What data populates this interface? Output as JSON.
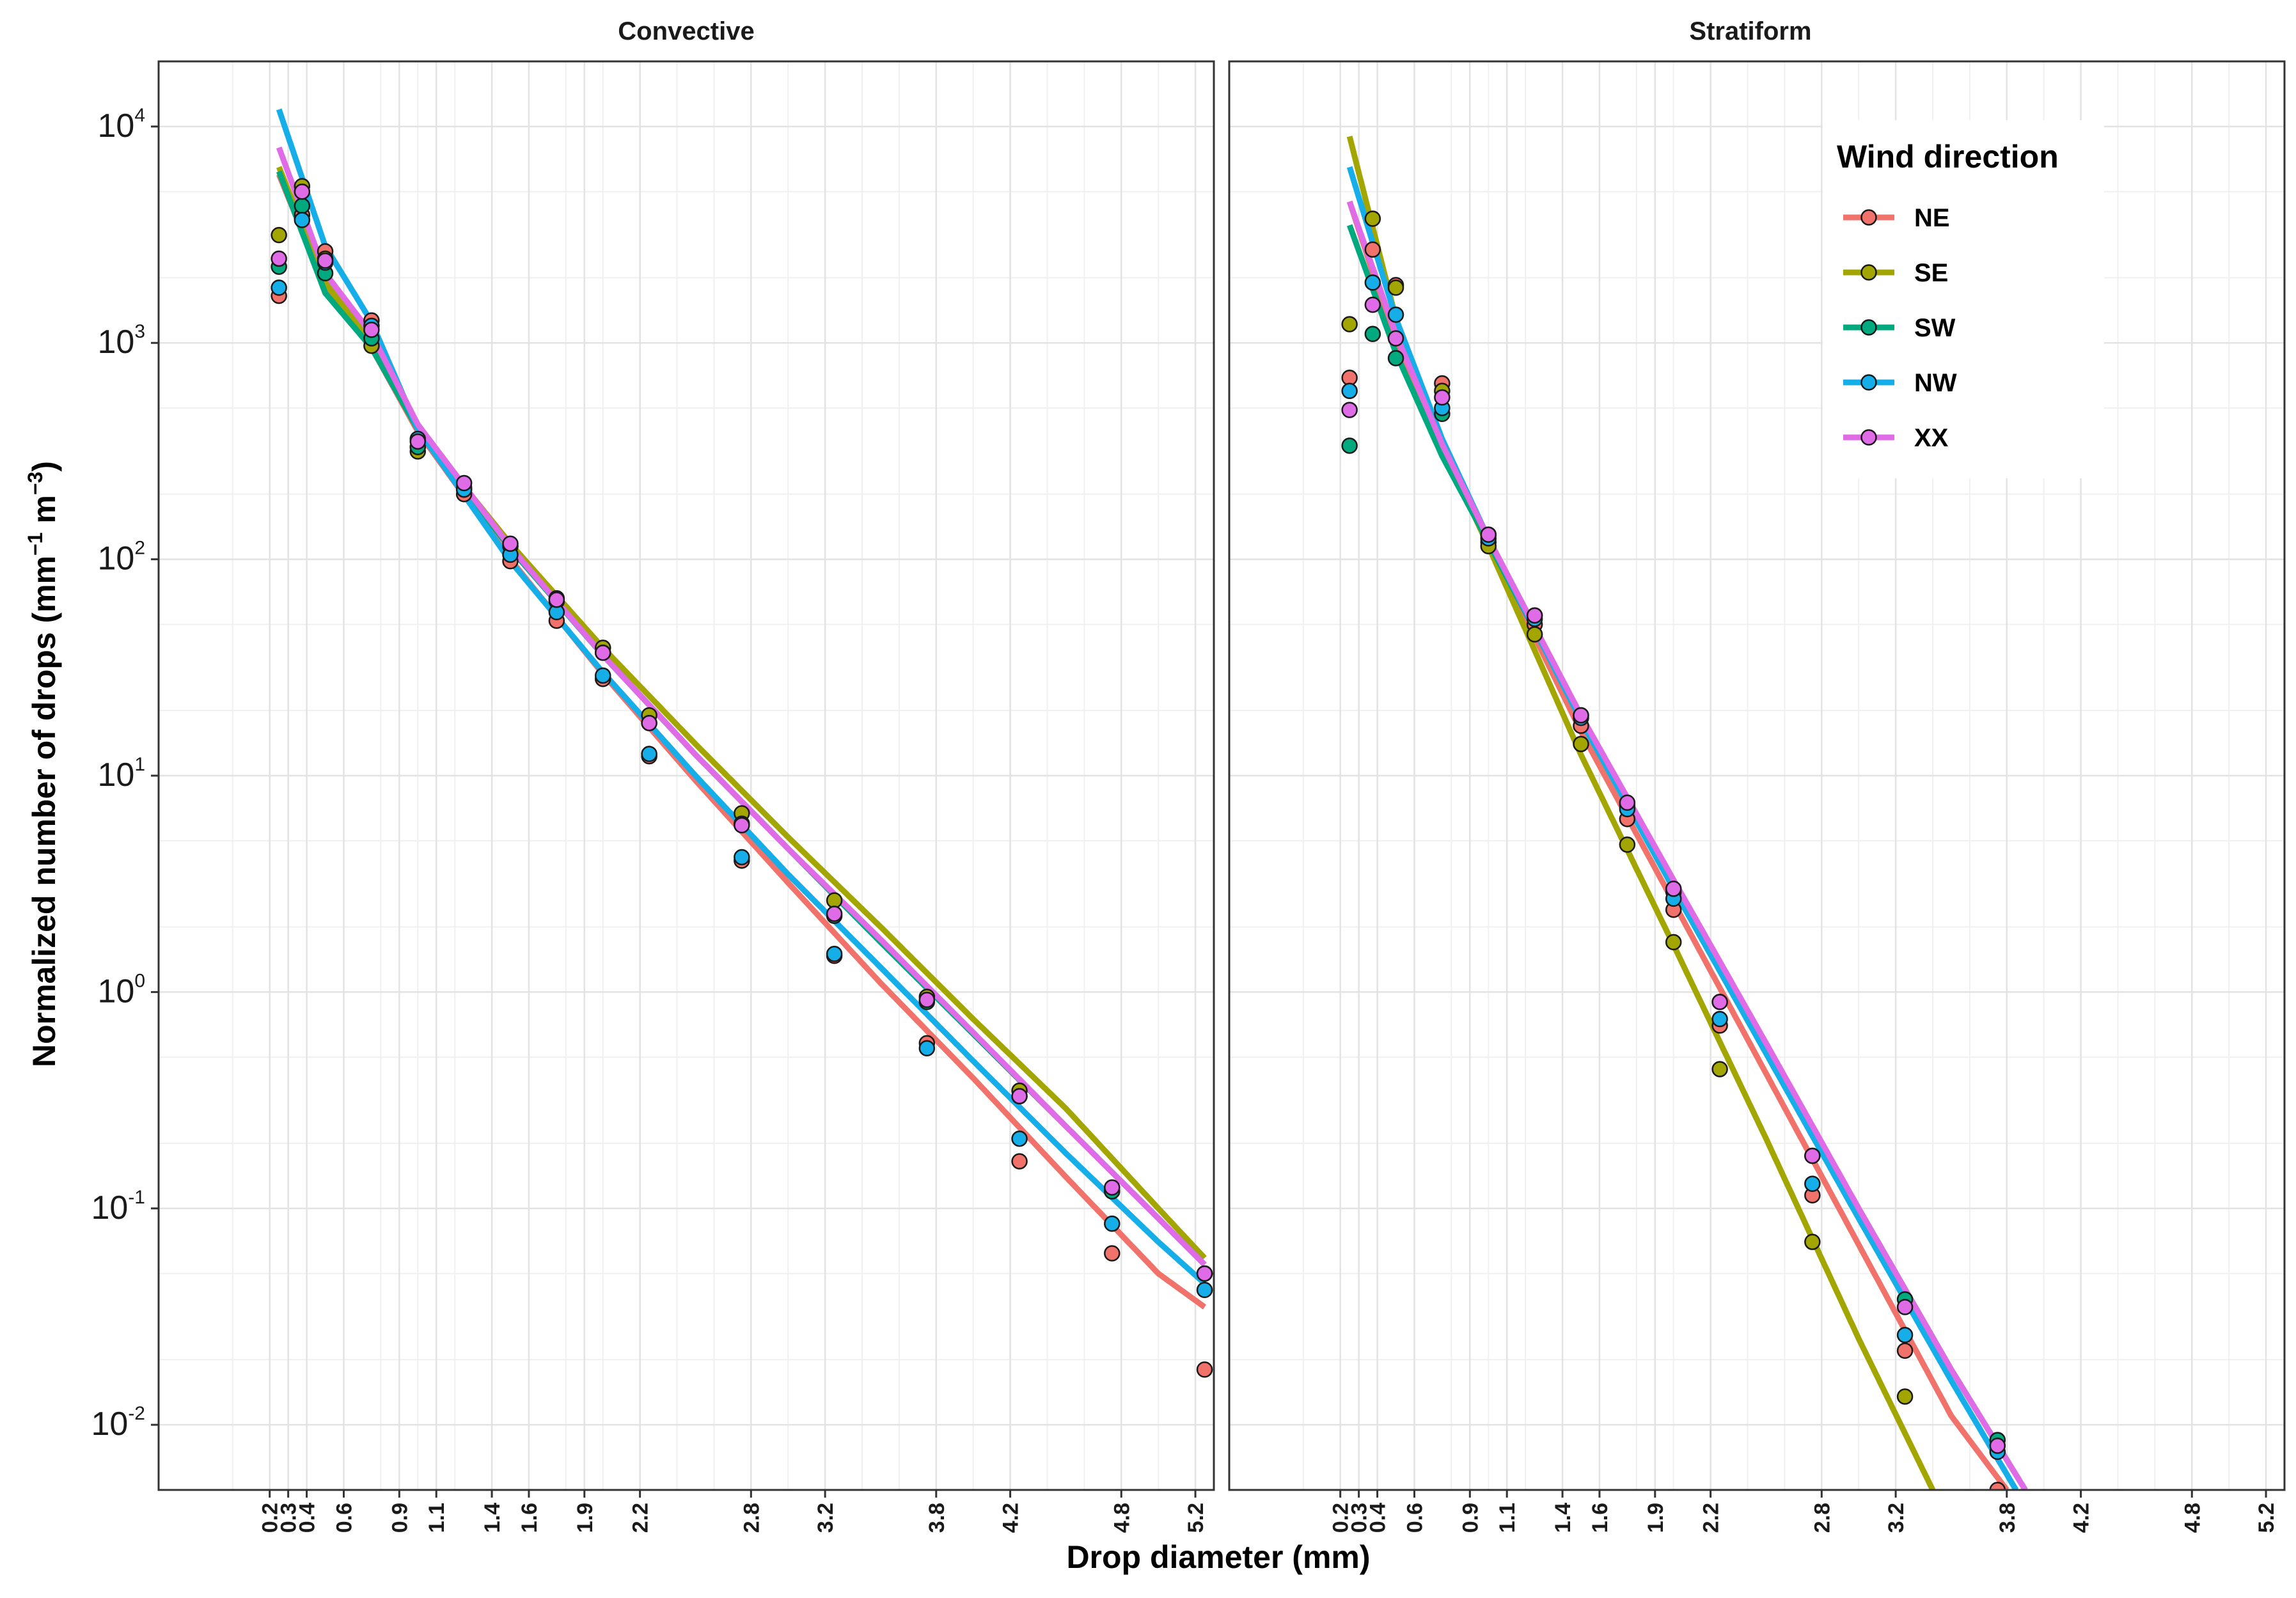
{
  "colors": {
    "NE": "#F0726A",
    "SE": "#A3A500",
    "SW": "#00A97E",
    "NW": "#16AEE8",
    "XX": "#E06BE7",
    "grid_major": "#e3e3e3",
    "grid_minor": "#f0f0f0",
    "frame": "#333333"
  },
  "chart_data": {
    "type": "scatter",
    "xlabel": "Drop diameter (mm)",
    "ylabel": "Normalized number of drops (mm⁻¹ m⁻³)",
    "ylabel_parts": [
      "Normalized number of drops (mm",
      "−1",
      " m",
      "−3",
      ")"
    ],
    "x_scale": "linear",
    "y_scale": "log10",
    "xlim": [
      -0.4,
      5.3
    ],
    "ylim": [
      0.005,
      20000
    ],
    "x_ticks": [
      0.2,
      0.3,
      0.4,
      0.6,
      0.9,
      1.1,
      1.4,
      1.6,
      1.9,
      2.2,
      2.8,
      3.2,
      3.8,
      4.2,
      4.8,
      5.2
    ],
    "x_tick_labels": [
      "0.2",
      "0.3",
      "0.4",
      "0.6",
      "0.9",
      "1.1",
      "1.4",
      "1.6",
      "1.9",
      "2.2",
      "2.8",
      "3.2",
      "3.8",
      "4.2",
      "4.8",
      "5.2"
    ],
    "y_ticks": [
      {
        "value": 0.01,
        "base": "10",
        "exp": "-2"
      },
      {
        "value": 0.1,
        "base": "10",
        "exp": "-1"
      },
      {
        "value": 1,
        "base": "10",
        "exp": "0"
      },
      {
        "value": 10,
        "base": "10",
        "exp": "1"
      },
      {
        "value": 100,
        "base": "10",
        "exp": "2"
      },
      {
        "value": 1000,
        "base": "10",
        "exp": "3"
      },
      {
        "value": 10000,
        "base": "10",
        "exp": "4"
      }
    ],
    "legend": {
      "title": "Wind direction",
      "position": "top-right of Stratiform panel",
      "entries": [
        "NE",
        "SE",
        "SW",
        "NW",
        "XX"
      ]
    },
    "panels": [
      {
        "title": "Convective",
        "series": [
          {
            "name": "NE",
            "points": {
              "x": [
                0.25,
                0.375,
                0.5,
                0.75,
                1.0,
                1.25,
                1.5,
                1.75,
                2.0,
                2.25,
                2.75,
                3.25,
                3.75,
                4.25,
                4.75,
                5.25
              ],
              "y": [
                1650,
                3900,
                2650,
                1270,
                330,
                200,
                98,
                52,
                28,
                12.3,
                4.05,
                1.47,
                0.58,
                0.165,
                0.062,
                0.018
              ]
            },
            "fit": {
              "x": [
                0.25,
                0.5,
                0.75,
                1.0,
                1.5,
                2.0,
                2.5,
                3.0,
                3.5,
                4.0,
                4.5,
                5.0,
                5.25
              ],
              "y": [
                6000,
                1800,
                950,
                390,
                100,
                29.5,
                9.5,
                3.2,
                1.1,
                0.4,
                0.14,
                0.05,
                0.035
              ]
            }
          },
          {
            "name": "SE",
            "points": {
              "x": [
                0.25,
                0.375,
                0.5,
                0.75,
                1.0,
                1.25,
                1.5,
                1.75,
                2.0,
                2.25,
                2.75,
                3.25,
                3.75,
                4.25,
                4.75,
                5.25
              ],
              "y": [
                3150,
                5300,
                2450,
                970,
                315,
                215,
                115,
                66,
                39,
                19,
                6.7,
                2.65,
                0.95,
                0.35,
                0.12,
                0.05
              ]
            },
            "fit": {
              "x": [
                0.25,
                0.5,
                0.75,
                1.0,
                1.5,
                2.0,
                2.5,
                3.0,
                3.5,
                4.0,
                4.5,
                5.0,
                5.25
              ],
              "y": [
                6500,
                1900,
                1000,
                400,
                118,
                39,
                14,
                5.2,
                2.0,
                0.75,
                0.29,
                0.1,
                0.059
              ]
            }
          },
          {
            "name": "SW",
            "points": {
              "x": [
                0.25,
                0.375,
                0.5,
                0.75,
                1.0,
                1.25,
                1.5,
                1.75,
                2.0,
                2.25,
                2.75,
                3.25,
                3.75,
                4.25,
                4.75,
                5.25
              ],
              "y": [
                2250,
                4300,
                2100,
                1050,
                330,
                210,
                115,
                64,
                37,
                17.5,
                6.0,
                2.25,
                0.9,
                0.33,
                0.12,
                0.05
              ]
            },
            "fit": {
              "x": [
                0.25,
                0.5,
                0.75,
                1.0,
                1.5,
                2.0,
                2.5,
                3.0,
                3.5,
                4.0,
                4.5,
                5.0,
                5.25
              ],
              "y": [
                6200,
                1700,
                950,
                400,
                112,
                36,
                12.5,
                4.6,
                1.7,
                0.64,
                0.24,
                0.09,
                0.055
              ]
            }
          },
          {
            "name": "NW",
            "points": {
              "x": [
                0.25,
                0.375,
                0.5,
                0.75,
                1.0,
                1.25,
                1.5,
                1.75,
                2.0,
                2.25,
                2.75,
                3.25,
                3.75,
                4.25,
                4.75,
                5.25
              ],
              "y": [
                1800,
                3700,
                2350,
                1200,
                360,
                210,
                105,
                57,
                29,
                12.6,
                4.2,
                1.5,
                0.55,
                0.21,
                0.085,
                0.042
              ]
            },
            "fit": {
              "x": [
                0.25,
                0.5,
                0.75,
                1.0,
                1.5,
                2.0,
                2.5,
                3.0,
                3.5,
                4.0,
                4.5,
                5.0,
                5.25
              ],
              "y": [
                12000,
                2800,
                1250,
                400,
                98,
                30,
                10,
                3.5,
                1.3,
                0.48,
                0.18,
                0.07,
                0.045
              ]
            }
          },
          {
            "name": "XX",
            "points": {
              "x": [
                0.25,
                0.375,
                0.5,
                0.75,
                1.0,
                1.25,
                1.5,
                1.75,
                2.0,
                2.25,
                2.75,
                3.25,
                3.75,
                4.25,
                4.75,
                5.25
              ],
              "y": [
                2450,
                5000,
                2400,
                1150,
                350,
                225,
                118,
                65,
                37,
                17.5,
                5.9,
                2.3,
                0.92,
                0.33,
                0.125,
                0.05
              ]
            },
            "fit": {
              "x": [
                0.25,
                0.5,
                0.75,
                1.0,
                1.5,
                2.0,
                2.5,
                3.0,
                3.5,
                4.0,
                4.5,
                5.0,
                5.25
              ],
              "y": [
                8000,
                2100,
                1100,
                420,
                114,
                36,
                12.5,
                4.6,
                1.75,
                0.65,
                0.24,
                0.09,
                0.055
              ]
            }
          }
        ]
      },
      {
        "title": "Stratiform",
        "series": [
          {
            "name": "NE",
            "points": {
              "x": [
                0.25,
                0.375,
                0.5,
                0.75,
                1.0,
                1.25,
                1.5,
                1.75,
                2.0,
                2.25,
                2.75,
                3.25,
                3.75
              ],
              "y": [
                690,
                2700,
                1850,
                650,
                120,
                50,
                17,
                6.3,
                2.4,
                0.7,
                0.115,
                0.022,
                0.005
              ]
            },
            "fit": {
              "x": [
                0.25,
                0.5,
                0.75,
                1.0,
                1.5,
                2.0,
                2.5,
                3.0,
                3.5,
                3.8
              ],
              "y": [
                4500,
                1000,
                330,
                120,
                16,
                2.6,
                0.42,
                0.068,
                0.011,
                0.005
              ]
            }
          },
          {
            "name": "SE",
            "points": {
              "x": [
                0.25,
                0.375,
                0.5,
                0.75,
                1.0,
                1.25,
                1.5,
                1.75,
                2.0,
                2.25,
                2.75,
                3.25
              ],
              "y": [
                1220,
                3750,
                1800,
                600,
                115,
                45,
                14,
                4.8,
                1.7,
                0.44,
                0.07,
                0.0135
              ]
            },
            "fit": {
              "x": [
                0.25,
                0.5,
                0.75,
                1.0,
                1.5,
                2.0,
                2.5,
                3.0,
                3.4
              ],
              "y": [
                9000,
                1300,
                330,
                115,
                12.5,
                1.65,
                0.21,
                0.025,
                0.005
              ]
            }
          },
          {
            "name": "SW",
            "points": {
              "x": [
                0.25,
                0.375,
                0.5,
                0.75,
                1.0,
                1.25,
                1.5,
                1.75,
                2.0,
                2.25,
                2.75,
                3.25,
                3.75
              ],
              "y": [
                335,
                1100,
                850,
                470,
                130,
                55,
                19,
                7.3,
                2.9,
                0.9,
                0.175,
                0.038,
                0.0085
              ]
            },
            "fit": {
              "x": [
                0.25,
                0.5,
                0.75,
                1.0,
                1.5,
                2.0,
                2.5,
                3.0,
                3.5,
                3.9
              ],
              "y": [
                3500,
                900,
                300,
                120,
                18.5,
                3.2,
                0.56,
                0.1,
                0.018,
                0.005
              ]
            }
          },
          {
            "name": "NW",
            "points": {
              "x": [
                0.25,
                0.375,
                0.5,
                0.75,
                1.0,
                1.25,
                1.5,
                1.75,
                2.0,
                2.25,
                2.75,
                3.25,
                3.75
              ],
              "y": [
                600,
                1900,
                1350,
                500,
                125,
                53,
                18.5,
                7.0,
                2.7,
                0.75,
                0.13,
                0.026,
                0.0075
              ]
            },
            "fit": {
              "x": [
                0.25,
                0.5,
                0.75,
                1.0,
                1.5,
                2.0,
                2.5,
                3.0,
                3.5,
                3.85
              ],
              "y": [
                6500,
                1300,
                360,
                125,
                18,
                3.0,
                0.52,
                0.09,
                0.016,
                0.005
              ]
            }
          },
          {
            "name": "XX",
            "points": {
              "x": [
                0.25,
                0.375,
                0.5,
                0.75,
                1.0,
                1.25,
                1.5,
                1.75,
                2.0,
                2.25,
                2.75,
                3.25,
                3.75
              ],
              "y": [
                490,
                1500,
                1050,
                560,
                130,
                55,
                19,
                7.5,
                3.0,
                0.9,
                0.175,
                0.035,
                0.008
              ]
            },
            "fit": {
              "x": [
                0.25,
                0.5,
                0.75,
                1.0,
                1.5,
                2.0,
                2.5,
                3.0,
                3.5,
                3.9
              ],
              "y": [
                4500,
                1100,
                340,
                125,
                19,
                3.3,
                0.58,
                0.1,
                0.018,
                0.005
              ]
            }
          }
        ]
      }
    ]
  }
}
